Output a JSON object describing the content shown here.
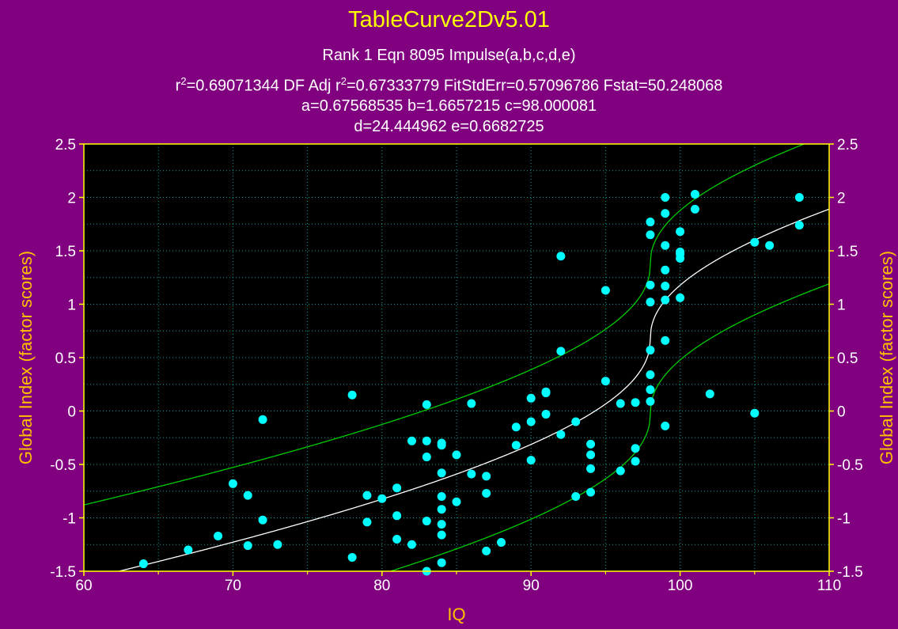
{
  "header": {
    "app_title": "TableCurve2Dv5.01",
    "rank_line": "Rank 1  Eqn 8095  Impulse(a,b,c,d,e)",
    "stats_r2": "=0.69071344  DF Adj r",
    "stats_adj": "=0.67333779  FitStdErr=0.57096786  Fstat=50.248068",
    "params_line1": "a=0.67568535 b=1.6657215 c=98.000081",
    "params_line2": "d=24.444962 e=0.6682725"
  },
  "colors": {
    "background": "#800080",
    "plot_bg": "#000000",
    "title": "#ffff00",
    "axis_title": "#ffc000",
    "points": "#00ffff",
    "fit_line": "#ffffff",
    "band": "#00cc00",
    "grid": "#00a0a0",
    "frame": "#ffff00"
  },
  "chart_data": {
    "type": "scatter",
    "xlabel": "IQ",
    "ylabel": "Global Index (factor scores)",
    "xlim": [
      60,
      110
    ],
    "ylim": [
      -1.5,
      2.5
    ],
    "x_ticks": [
      "60",
      "70",
      "80",
      "90",
      "100",
      "110"
    ],
    "y_ticks": [
      "-1.5",
      "-1",
      "-0.5",
      "0",
      "0.5",
      "1",
      "1.5",
      "2",
      "2.5"
    ],
    "grid": true,
    "points": [
      [
        64,
        -1.43
      ],
      [
        67,
        -1.3
      ],
      [
        69,
        -1.17
      ],
      [
        70,
        -0.68
      ],
      [
        71,
        -1.26
      ],
      [
        71,
        -0.79
      ],
      [
        72,
        -0.08
      ],
      [
        72,
        -1.02
      ],
      [
        73,
        -1.25
      ],
      [
        78,
        -1.37
      ],
      [
        78,
        0.15
      ],
      [
        79,
        -0.79
      ],
      [
        79,
        -1.04
      ],
      [
        80,
        -0.82
      ],
      [
        81,
        -0.72
      ],
      [
        81,
        -0.98
      ],
      [
        81,
        -1.2
      ],
      [
        82,
        -0.28
      ],
      [
        82,
        -1.25
      ],
      [
        83,
        0.06
      ],
      [
        83,
        -0.28
      ],
      [
        83,
        -0.43
      ],
      [
        83,
        -1.03
      ],
      [
        83,
        -1.5
      ],
      [
        84,
        -0.3
      ],
      [
        84,
        -0.32
      ],
      [
        84,
        -0.58
      ],
      [
        84,
        -0.8
      ],
      [
        84,
        -0.92
      ],
      [
        84,
        -1.06
      ],
      [
        84,
        -1.16
      ],
      [
        84,
        -1.42
      ],
      [
        85,
        -0.41
      ],
      [
        85,
        -0.85
      ],
      [
        86,
        0.07
      ],
      [
        86,
        -0.59
      ],
      [
        87,
        -0.61
      ],
      [
        87,
        -0.77
      ],
      [
        87,
        -1.31
      ],
      [
        88,
        -1.23
      ],
      [
        89,
        -0.15
      ],
      [
        89,
        -0.32
      ],
      [
        90,
        0.12
      ],
      [
        90,
        -0.1
      ],
      [
        90,
        -0.46
      ],
      [
        91,
        0.18
      ],
      [
        91,
        0.17
      ],
      [
        91,
        -0.03
      ],
      [
        92,
        1.45
      ],
      [
        92,
        0.56
      ],
      [
        92,
        -0.22
      ],
      [
        93,
        -0.1
      ],
      [
        93,
        -0.8
      ],
      [
        94,
        -0.31
      ],
      [
        94,
        -0.41
      ],
      [
        94,
        -0.54
      ],
      [
        94,
        -0.76
      ],
      [
        95,
        1.13
      ],
      [
        95,
        0.28
      ],
      [
        96,
        0.07
      ],
      [
        96,
        -0.56
      ],
      [
        97,
        0.08
      ],
      [
        97,
        -0.35
      ],
      [
        97,
        -0.47
      ],
      [
        98,
        1.77
      ],
      [
        98,
        1.65
      ],
      [
        98,
        1.18
      ],
      [
        98,
        1.02
      ],
      [
        98,
        0.57
      ],
      [
        98,
        0.34
      ],
      [
        98,
        0.2
      ],
      [
        98,
        0.09
      ],
      [
        99,
        2.0
      ],
      [
        99,
        1.85
      ],
      [
        99,
        1.55
      ],
      [
        99,
        1.32
      ],
      [
        99,
        1.17
      ],
      [
        99,
        1.04
      ],
      [
        99,
        0.66
      ],
      [
        99,
        -0.14
      ],
      [
        100,
        1.68
      ],
      [
        100,
        1.49
      ],
      [
        100,
        1.47
      ],
      [
        100,
        1.43
      ],
      [
        100,
        1.06
      ],
      [
        101,
        2.03
      ],
      [
        101,
        1.89
      ],
      [
        102,
        0.16
      ],
      [
        105,
        1.58
      ],
      [
        105,
        -0.02
      ],
      [
        106,
        1.55
      ],
      [
        108,
        2.0
      ],
      [
        108,
        1.74
      ]
    ],
    "fit": {
      "model": "Impulse(a,b,c,d,e)",
      "a": 0.67568535,
      "b": 1.6657215,
      "c": 98.000081,
      "d": 24.444962,
      "e": 0.6682725
    },
    "band_half_width": 0.7
  }
}
